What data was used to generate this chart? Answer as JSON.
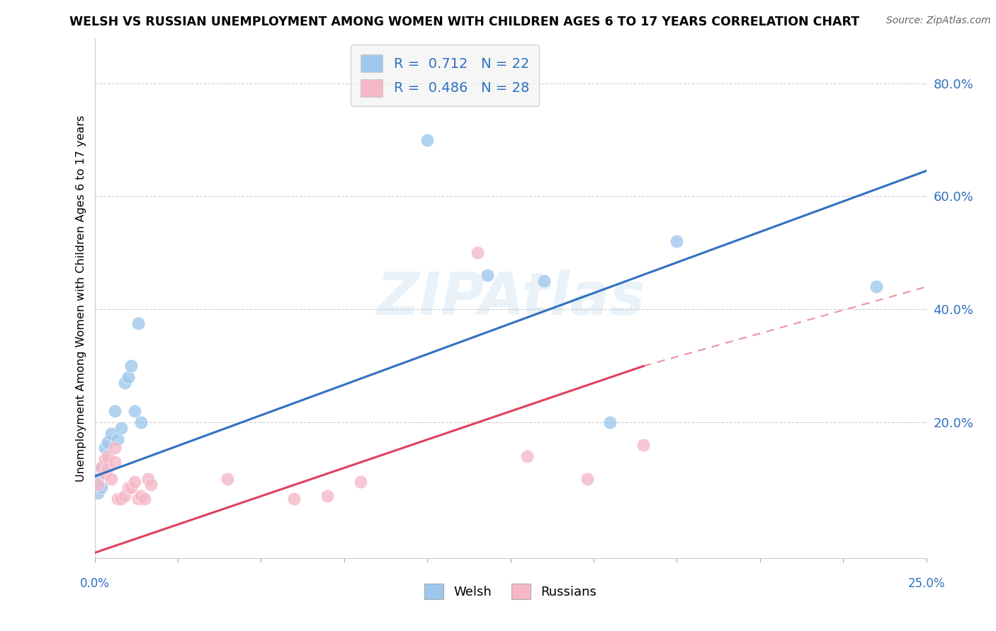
{
  "title": "WELSH VS RUSSIAN UNEMPLOYMENT AMONG WOMEN WITH CHILDREN AGES 6 TO 17 YEARS CORRELATION CHART",
  "source": "Source: ZipAtlas.com",
  "ylabel": "Unemployment Among Women with Children Ages 6 to 17 years",
  "welsh_R": 0.712,
  "welsh_N": 22,
  "russian_R": 0.486,
  "russian_N": 28,
  "welsh_color": "#9ec8ec",
  "russian_color": "#f5b8c8",
  "welsh_line_color": "#3070c0",
  "russian_line_color": "#e04060",
  "watermark": "ZIPAtlas",
  "watermark_color": "#b8d4ec",
  "label_color": "#3070c0",
  "welsh_scatter_x": [
    0.001,
    0.001,
    0.002,
    0.002,
    0.003,
    0.004,
    0.005,
    0.006,
    0.007,
    0.008,
    0.009,
    0.01,
    0.011,
    0.012,
    0.013,
    0.014,
    0.1,
    0.118,
    0.135,
    0.155,
    0.175,
    0.235
  ],
  "welsh_scatter_y": [
    0.1,
    0.075,
    0.12,
    0.085,
    0.155,
    0.165,
    0.18,
    0.22,
    0.17,
    0.19,
    0.27,
    0.28,
    0.3,
    0.22,
    0.375,
    0.2,
    0.7,
    0.46,
    0.45,
    0.2,
    0.52,
    0.44
  ],
  "russian_scatter_x": [
    0.001,
    0.002,
    0.003,
    0.003,
    0.004,
    0.004,
    0.005,
    0.006,
    0.006,
    0.007,
    0.008,
    0.009,
    0.01,
    0.011,
    0.012,
    0.013,
    0.014,
    0.015,
    0.016,
    0.017,
    0.04,
    0.06,
    0.07,
    0.08,
    0.115,
    0.13,
    0.148,
    0.165
  ],
  "russian_scatter_y": [
    0.09,
    0.12,
    0.11,
    0.135,
    0.12,
    0.14,
    0.1,
    0.13,
    0.155,
    0.065,
    0.065,
    0.07,
    0.085,
    0.085,
    0.095,
    0.065,
    0.07,
    0.065,
    0.1,
    0.09,
    0.1,
    0.065,
    0.07,
    0.095,
    0.5,
    0.14,
    0.1,
    0.16
  ],
  "xlim": [
    0.0,
    0.25
  ],
  "ylim": [
    -0.04,
    0.88
  ],
  "welsh_line": [
    [
      0.0,
      0.25
    ],
    [
      0.105,
      0.645
    ]
  ],
  "russian_line_solid": [
    [
      0.0,
      0.165
    ],
    [
      -0.03,
      0.3
    ]
  ],
  "russian_line_dashed": [
    [
      0.165,
      0.25
    ],
    [
      0.3,
      0.44
    ]
  ],
  "y_ticks": [
    0.2,
    0.4,
    0.6,
    0.8
  ],
  "grid_color": "#cccccc",
  "spine_color": "#cccccc",
  "background_color": "#ffffff",
  "marker_size": 180
}
